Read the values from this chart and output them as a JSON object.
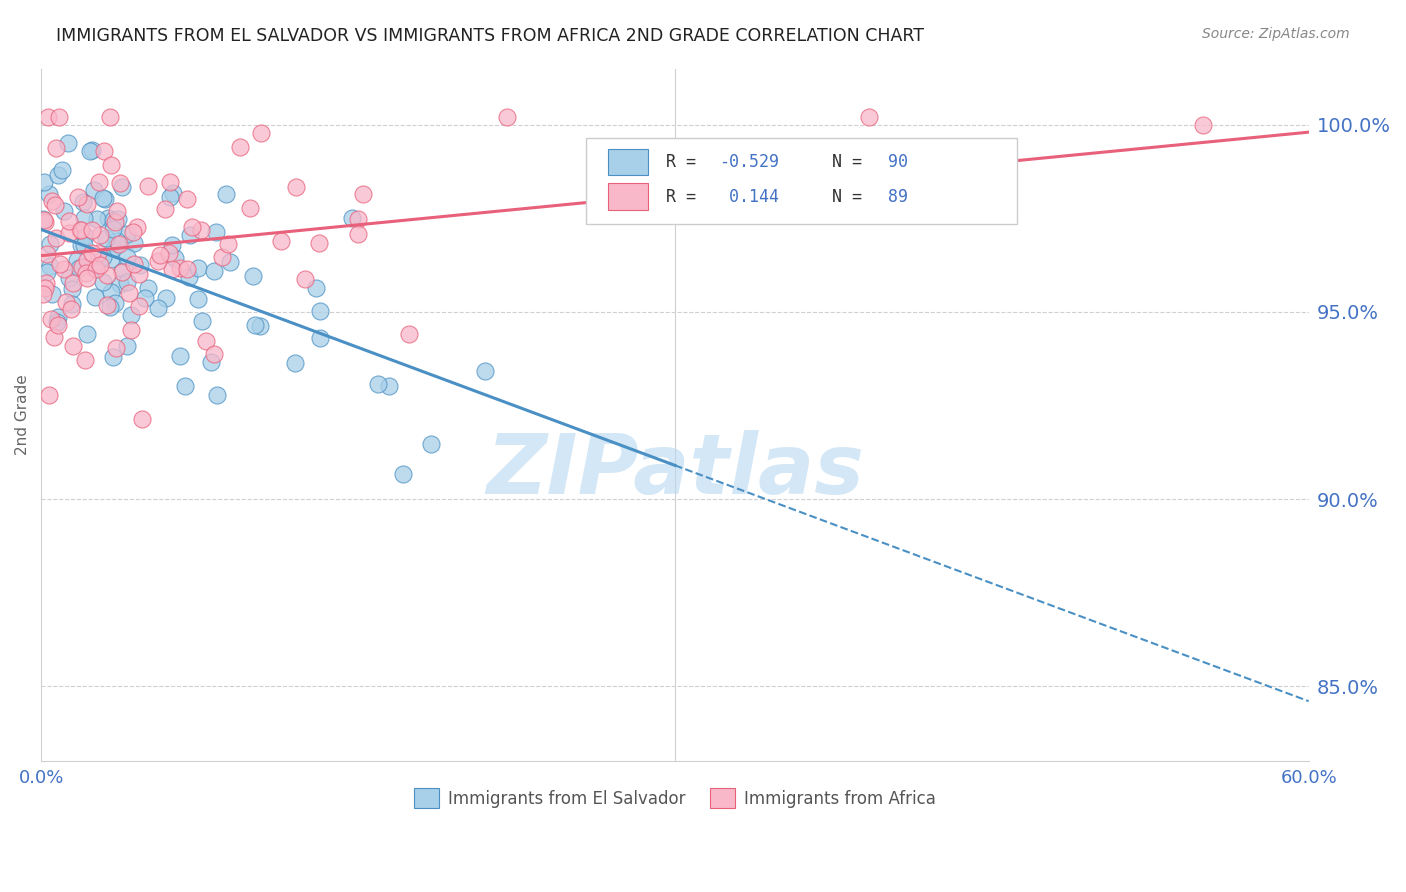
{
  "title": "IMMIGRANTS FROM EL SALVADOR VS IMMIGRANTS FROM AFRICA 2ND GRADE CORRELATION CHART",
  "source": "Source: ZipAtlas.com",
  "ylabel": "2nd Grade",
  "y_ticks": [
    85.0,
    90.0,
    95.0,
    100.0
  ],
  "x_min": 0.0,
  "x_max": 60.0,
  "y_min": 83.0,
  "y_max": 101.5,
  "legend_r_blue": "-0.529",
  "legend_n_blue": "90",
  "legend_r_pink": "0.144",
  "legend_n_pink": "89",
  "blue_color": "#a8d0e8",
  "pink_color": "#f9b8ca",
  "blue_edge_color": "#4a90c4",
  "pink_edge_color": "#e8607a",
  "blue_line_color": "#4a90c4",
  "pink_line_color": "#e8607a",
  "watermark": "ZIPatlas",
  "watermark_color": "#b8d8f0",
  "title_color": "#222222",
  "axis_label_color": "#4472c4",
  "grid_color": "#d0d0d0",
  "legend_label_blue": "Immigrants from El Salvador",
  "legend_label_pink": "Immigrants from Africa",
  "blue_line_y0": 97.2,
  "blue_line_slope": -0.21,
  "pink_line_y0": 96.5,
  "pink_line_slope": 0.055
}
